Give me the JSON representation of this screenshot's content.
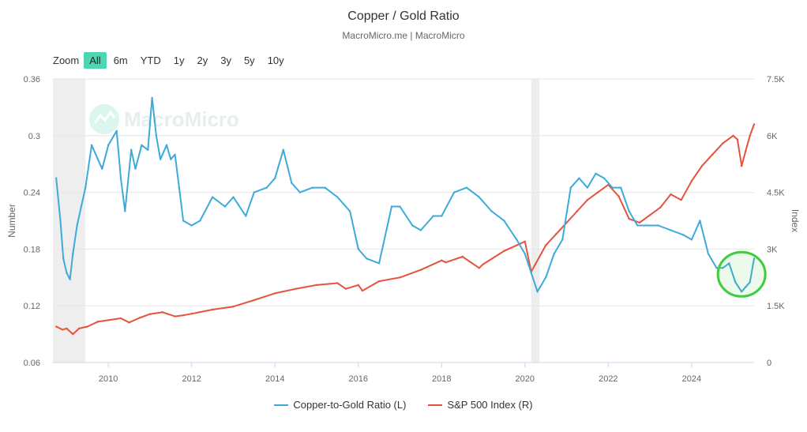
{
  "header": {
    "title": "Copper / Gold Ratio",
    "subtitle": "MacroMicro.me | MacroMicro"
  },
  "zoom": {
    "label": "Zoom",
    "buttons": [
      "All",
      "6m",
      "YTD",
      "1y",
      "2y",
      "3y",
      "5y",
      "10y"
    ],
    "active": "All"
  },
  "watermark": "MacroMicro",
  "colors": {
    "copper_gold": "#3daad9",
    "sp500": "#e5533c",
    "highlight_circle": "#3fcc3f",
    "shading": "#eeeeee"
  },
  "chart_data": {
    "type": "line",
    "title": "Copper / Gold Ratio",
    "subtitle": "MacroMicro.me | MacroMicro",
    "x_range": [
      2008.67,
      2025.5
    ],
    "x_ticks": [
      "2010",
      "2012",
      "2014",
      "2016",
      "2018",
      "2020",
      "2022",
      "2024"
    ],
    "y_left": {
      "label": "Number",
      "range": [
        0.06,
        0.36
      ],
      "ticks": [
        "0.06",
        "0.12",
        "0.18",
        "0.24",
        "0.3",
        "0.36"
      ]
    },
    "y_right": {
      "label": "Index",
      "range": [
        0,
        7500
      ],
      "ticks": [
        "0",
        "1.5K",
        "3K",
        "4.5K",
        "6K",
        "7.5K"
      ]
    },
    "shaded_periods": [
      [
        2008.67,
        2009.45
      ],
      [
        2020.15,
        2020.35
      ]
    ],
    "grid": "horizontal",
    "legend_position": "bottom-center",
    "series": [
      {
        "name": "Copper-to-Gold Ratio (L)",
        "axis": "left",
        "color": "#3daad9",
        "x": [
          2008.75,
          2008.85,
          2008.92,
          2009.0,
          2009.08,
          2009.15,
          2009.25,
          2009.35,
          2009.45,
          2009.6,
          2009.75,
          2009.85,
          2010.0,
          2010.2,
          2010.3,
          2010.4,
          2010.55,
          2010.65,
          2010.8,
          2010.95,
          2011.05,
          2011.15,
          2011.25,
          2011.4,
          2011.5,
          2011.6,
          2011.7,
          2011.8,
          2012.0,
          2012.2,
          2012.5,
          2012.8,
          2013.0,
          2013.3,
          2013.5,
          2013.8,
          2014.0,
          2014.2,
          2014.4,
          2014.6,
          2014.9,
          2015.2,
          2015.5,
          2015.8,
          2016.0,
          2016.2,
          2016.5,
          2016.8,
          2017.0,
          2017.3,
          2017.5,
          2017.8,
          2018.0,
          2018.3,
          2018.6,
          2018.9,
          2019.2,
          2019.5,
          2019.8,
          2020.0,
          2020.15,
          2020.3,
          2020.5,
          2020.7,
          2020.9,
          2021.1,
          2021.3,
          2021.5,
          2021.7,
          2021.9,
          2022.1,
          2022.3,
          2022.5,
          2022.7,
          2022.9,
          2023.2,
          2023.5,
          2023.8,
          2024.0,
          2024.2,
          2024.4,
          2024.6,
          2024.75,
          2024.9,
          2025.05,
          2025.2,
          2025.3,
          2025.4,
          2025.5
        ],
        "values": [
          0.255,
          0.21,
          0.17,
          0.155,
          0.148,
          0.175,
          0.205,
          0.225,
          0.245,
          0.29,
          0.275,
          0.265,
          0.29,
          0.305,
          0.255,
          0.22,
          0.285,
          0.265,
          0.29,
          0.285,
          0.34,
          0.3,
          0.275,
          0.29,
          0.275,
          0.28,
          0.245,
          0.21,
          0.205,
          0.21,
          0.235,
          0.225,
          0.235,
          0.215,
          0.24,
          0.245,
          0.255,
          0.285,
          0.25,
          0.24,
          0.245,
          0.245,
          0.235,
          0.22,
          0.18,
          0.17,
          0.165,
          0.225,
          0.225,
          0.205,
          0.2,
          0.215,
          0.215,
          0.24,
          0.245,
          0.235,
          0.22,
          0.21,
          0.19,
          0.175,
          0.155,
          0.135,
          0.15,
          0.175,
          0.19,
          0.245,
          0.255,
          0.245,
          0.26,
          0.255,
          0.245,
          0.245,
          0.22,
          0.205,
          0.205,
          0.205,
          0.2,
          0.195,
          0.19,
          0.21,
          0.175,
          0.16,
          0.16,
          0.165,
          0.145,
          0.135,
          0.14,
          0.145,
          0.17
        ]
      },
      {
        "name": "S&P 500 Index (R)",
        "axis": "right",
        "color": "#e5533c",
        "x": [
          2008.75,
          2008.9,
          2009.0,
          2009.15,
          2009.3,
          2009.5,
          2009.75,
          2010.0,
          2010.3,
          2010.5,
          2010.75,
          2011.0,
          2011.3,
          2011.6,
          2011.8,
          2012.0,
          2012.5,
          2013.0,
          2013.5,
          2014.0,
          2014.5,
          2015.0,
          2015.5,
          2015.7,
          2016.0,
          2016.1,
          2016.5,
          2017.0,
          2017.5,
          2018.0,
          2018.1,
          2018.5,
          2018.9,
          2019.0,
          2019.5,
          2020.0,
          2020.15,
          2020.25,
          2020.5,
          2020.75,
          2021.0,
          2021.25,
          2021.5,
          2021.75,
          2022.0,
          2022.25,
          2022.5,
          2022.75,
          2023.0,
          2023.25,
          2023.5,
          2023.75,
          2024.0,
          2024.25,
          2024.5,
          2024.75,
          2025.0,
          2025.1,
          2025.2,
          2025.3,
          2025.4,
          2025.5
        ],
        "values": [
          950,
          870,
          900,
          750,
          900,
          950,
          1080,
          1120,
          1170,
          1060,
          1180,
          1280,
          1330,
          1220,
          1250,
          1290,
          1400,
          1480,
          1650,
          1830,
          1950,
          2050,
          2100,
          1950,
          2050,
          1900,
          2150,
          2250,
          2450,
          2700,
          2650,
          2800,
          2500,
          2600,
          2950,
          3200,
          2400,
          2600,
          3100,
          3400,
          3700,
          4000,
          4300,
          4500,
          4700,
          4400,
          3800,
          3700,
          3900,
          4100,
          4450,
          4300,
          4800,
          5200,
          5500,
          5800,
          6000,
          5900,
          5200,
          5600,
          6000,
          6300
        ]
      }
    ],
    "annotations": [
      {
        "type": "circle",
        "x": 2025.2,
        "y_left": 0.15,
        "note": ""
      }
    ]
  },
  "legend": {
    "items": [
      {
        "label": "Copper-to-Gold Ratio (L)",
        "color": "#3daad9"
      },
      {
        "label": "S&P 500 Index (R)",
        "color": "#e5533c"
      }
    ]
  }
}
